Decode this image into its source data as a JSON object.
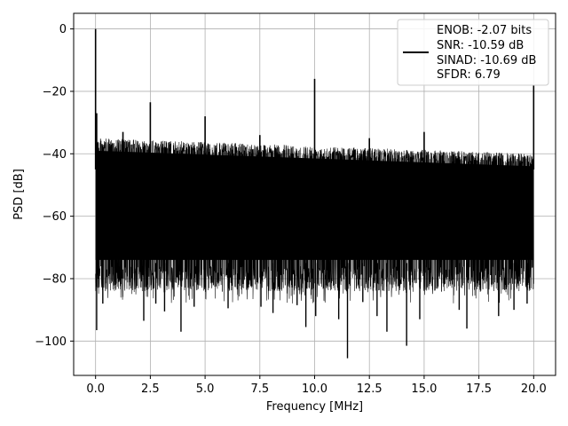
{
  "chart_data": {
    "type": "line",
    "xlabel": "Frequency [MHz]",
    "ylabel": "PSD [dB]",
    "xlim": [
      -1,
      21
    ],
    "ylim": [
      -111,
      5
    ],
    "xticks": [
      0.0,
      2.5,
      5.0,
      7.5,
      10.0,
      12.5,
      15.0,
      17.5,
      20.0
    ],
    "xtick_labels": [
      "0.0",
      "2.5",
      "5.0",
      "7.5",
      "10.0",
      "12.5",
      "15.0",
      "17.5",
      "20.0"
    ],
    "yticks": [
      0,
      -20,
      -40,
      -60,
      -80,
      -100
    ],
    "ytick_labels": [
      "0",
      "−20",
      "−40",
      "−60",
      "−80",
      "−100"
    ],
    "grid": true,
    "legend_position": "top-right",
    "series_color": "#000000",
    "legend_lines": [
      "ENOB: -2.07 bits",
      "SNR: -10.59 dB",
      "SINAD: -10.69 dB",
      "SFDR: 6.79"
    ],
    "noise_floor": {
      "x_range": [
        0,
        20
      ],
      "upper_envelope_start": -35,
      "upper_envelope_end": -40,
      "band_top": -42,
      "band_bottom": -76,
      "lower_excursion_min": -90
    },
    "peaks": [
      {
        "x": 0.0,
        "y": 0
      },
      {
        "x": 0.05,
        "y": -27
      },
      {
        "x": 1.25,
        "y": -33
      },
      {
        "x": 2.5,
        "y": -23.5
      },
      {
        "x": 5.0,
        "y": -28
      },
      {
        "x": 7.5,
        "y": -34
      },
      {
        "x": 10.0,
        "y": -16
      },
      {
        "x": 12.5,
        "y": -35
      },
      {
        "x": 15.0,
        "y": -33
      },
      {
        "x": 20.0,
        "y": -18
      }
    ],
    "dips": [
      {
        "x": 0.05,
        "y": -96.5
      },
      {
        "x": 0.12,
        "y": -80
      },
      {
        "x": 0.33,
        "y": -88
      },
      {
        "x": 2.2,
        "y": -93.5
      },
      {
        "x": 2.75,
        "y": -88
      },
      {
        "x": 3.15,
        "y": -90.5
      },
      {
        "x": 3.9,
        "y": -97
      },
      {
        "x": 4.5,
        "y": -89
      },
      {
        "x": 6.05,
        "y": -89.5
      },
      {
        "x": 7.55,
        "y": -89
      },
      {
        "x": 8.1,
        "y": -91
      },
      {
        "x": 9.2,
        "y": -88.5
      },
      {
        "x": 9.6,
        "y": -95.5
      },
      {
        "x": 10.05,
        "y": -92
      },
      {
        "x": 11.1,
        "y": -93
      },
      {
        "x": 11.5,
        "y": -105.5
      },
      {
        "x": 12.2,
        "y": -87.5
      },
      {
        "x": 12.85,
        "y": -92
      },
      {
        "x": 13.3,
        "y": -97
      },
      {
        "x": 14.2,
        "y": -101.5
      },
      {
        "x": 14.8,
        "y": -93
      },
      {
        "x": 16.6,
        "y": -90
      },
      {
        "x": 16.95,
        "y": -96
      },
      {
        "x": 18.4,
        "y": -92
      },
      {
        "x": 19.1,
        "y": -90
      },
      {
        "x": 19.7,
        "y": -88
      }
    ]
  }
}
